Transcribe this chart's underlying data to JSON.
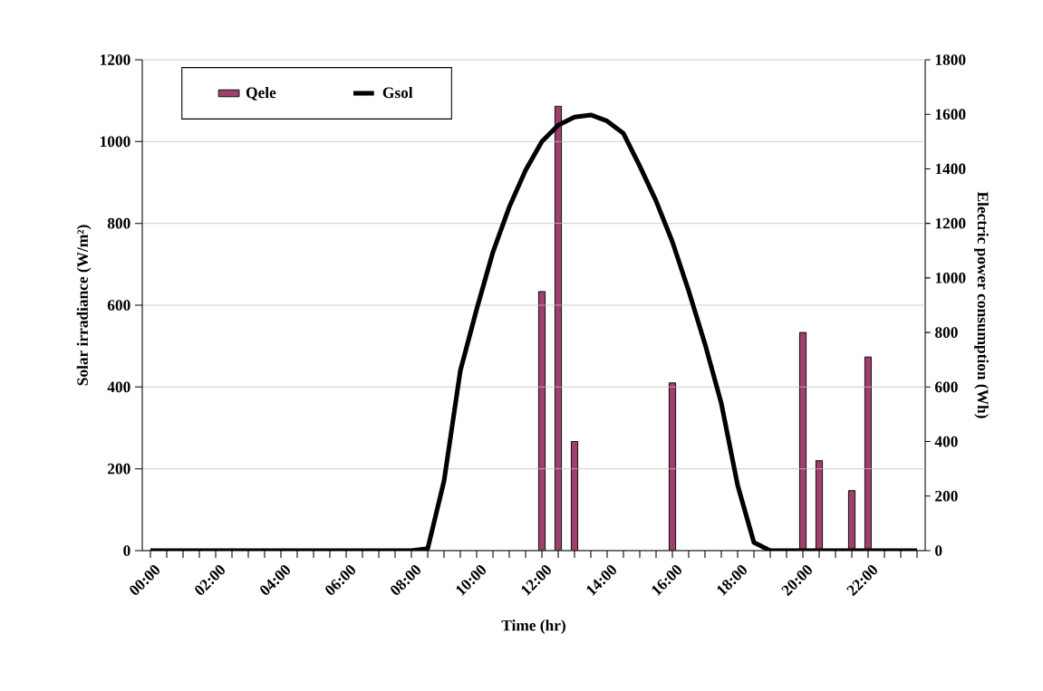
{
  "chart_data": {
    "type": "bar",
    "xlabel": "Time (hr)",
    "ylabel": "Solar irradiance (W/m²)",
    "y2label": "Electric power consumption (Wh)",
    "categories": [
      "00:00",
      null,
      null,
      null,
      "02:00",
      null,
      null,
      null,
      "04:00",
      null,
      null,
      null,
      "06:00",
      null,
      null,
      null,
      "08:00",
      null,
      null,
      null,
      "10:00",
      null,
      null,
      null,
      "12:00",
      null,
      null,
      null,
      "14:00",
      null,
      null,
      null,
      "16:00",
      null,
      null,
      null,
      "18:00",
      null,
      null,
      null,
      "20:00",
      null,
      null,
      null,
      "22:00",
      null,
      null,
      null
    ],
    "series": [
      {
        "name": "Qele",
        "axis": "y2",
        "color": "#9e3f6e",
        "values": [
          null,
          null,
          null,
          null,
          null,
          null,
          null,
          null,
          null,
          null,
          null,
          null,
          null,
          null,
          null,
          null,
          null,
          null,
          null,
          null,
          null,
          null,
          null,
          null,
          950,
          1630,
          400,
          null,
          null,
          null,
          null,
          null,
          615,
          null,
          null,
          null,
          null,
          null,
          null,
          null,
          800,
          330,
          null,
          220,
          710,
          null,
          null,
          null
        ]
      },
      {
        "name": "Gsol",
        "type": "line",
        "color": "#000000",
        "values": [
          0,
          0,
          0,
          0,
          0,
          0,
          0,
          0,
          0,
          0,
          0,
          0,
          0,
          0,
          0,
          0,
          0,
          5,
          170,
          440,
          590,
          730,
          840,
          930,
          1000,
          1040,
          1060,
          1065,
          1050,
          1020,
          940,
          855,
          755,
          635,
          505,
          360,
          160,
          20,
          0,
          0,
          0,
          0,
          0,
          0,
          0,
          0,
          0,
          0
        ]
      }
    ],
    "ylim": [
      0,
      1200
    ],
    "yticks": [
      0,
      200,
      400,
      600,
      800,
      1000,
      1200
    ],
    "y2lim": [
      0,
      1800
    ],
    "y2ticks": [
      0,
      200,
      400,
      600,
      800,
      1000,
      1200,
      1400,
      1600,
      1800
    ],
    "grid": "y",
    "legend": "top left"
  }
}
